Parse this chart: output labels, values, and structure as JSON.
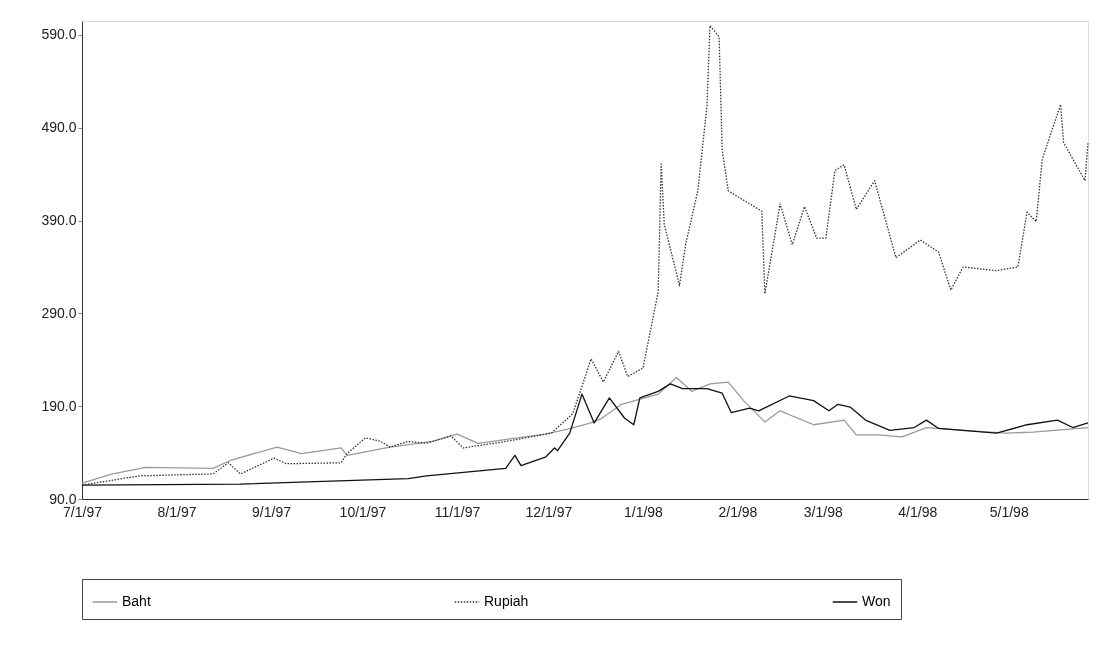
{
  "chart_data": {
    "type": "line",
    "xlim": [
      "1997-07-01",
      "1998-05-27"
    ],
    "ylim": [
      90,
      605
    ],
    "xticks": [
      {
        "value": "1997-07-01",
        "label": "7/1/97"
      },
      {
        "value": "1997-08-01",
        "label": "8/1/97"
      },
      {
        "value": "1997-09-01",
        "label": "9/1/97"
      },
      {
        "value": "1997-10-01",
        "label": "10/1/97"
      },
      {
        "value": "1997-11-01",
        "label": "11/1/97"
      },
      {
        "value": "1997-12-01",
        "label": "12/1/97"
      },
      {
        "value": "1998-01-01",
        "label": "1/1/98"
      },
      {
        "value": "1998-02-01",
        "label": "2/1/98"
      },
      {
        "value": "1998-03-01",
        "label": "3/1/98"
      },
      {
        "value": "1998-04-01",
        "label": "4/1/98"
      },
      {
        "value": "1998-05-01",
        "label": "5/1/98"
      }
    ],
    "yticks": [
      {
        "value": 90,
        "label": "90.0"
      },
      {
        "value": 190,
        "label": "190.0"
      },
      {
        "value": 290,
        "label": "290.0"
      },
      {
        "value": 390,
        "label": "390.0"
      },
      {
        "value": 490,
        "label": "490.0"
      },
      {
        "value": 590,
        "label": "590.0"
      }
    ],
    "grid": false,
    "legend": "bottom",
    "marker": "none",
    "series": [
      {
        "name": "Baht",
        "color": "#9a9a9a",
        "line_style": "solid",
        "x": [
          "1997-07-01",
          "1997-07-11",
          "1997-07-22",
          "1997-08-13",
          "1997-08-19",
          "1997-09-03",
          "1997-09-11",
          "1997-09-24",
          "1997-09-26",
          "1997-10-10",
          "1997-10-24",
          "1997-11-01",
          "1997-11-08",
          "1997-11-30",
          "1997-12-07",
          "1997-12-15",
          "1997-12-18",
          "1997-12-25",
          "1998-01-06",
          "1998-01-12",
          "1998-01-17",
          "1998-01-23",
          "1998-01-29",
          "1998-02-03",
          "1998-02-10",
          "1998-02-15",
          "1998-02-26",
          "1998-03-08",
          "1998-03-12",
          "1998-03-19",
          "1998-03-27",
          "1998-04-04",
          "1998-04-16",
          "1998-04-30",
          "1998-05-09",
          "1998-05-27"
        ],
        "values": [
          107,
          117,
          124,
          123,
          132,
          146,
          139,
          145,
          137,
          146,
          152,
          160,
          150,
          160,
          165,
          172,
          176,
          192,
          203,
          221,
          206,
          214,
          216,
          196,
          173,
          185,
          170,
          175,
          159,
          159,
          157,
          167,
          164,
          161,
          162,
          167
        ]
      },
      {
        "name": "Rupiah",
        "color": "#333333",
        "line_style": "dotted",
        "x": [
          "1997-07-01",
          "1997-07-20",
          "1997-08-13",
          "1997-08-18",
          "1997-08-22",
          "1997-09-02",
          "1997-09-06",
          "1997-09-24",
          "1997-09-26",
          "1997-10-02",
          "1997-10-07",
          "1997-10-10",
          "1997-10-16",
          "1997-10-22",
          "1997-10-30",
          "1997-11-03",
          "1997-11-17",
          "1997-12-02",
          "1997-12-09",
          "1997-12-15",
          "1997-12-19",
          "1997-12-24",
          "1997-12-27",
          "1998-01-01",
          "1998-01-06",
          "1998-01-07",
          "1998-01-08",
          "1998-01-13",
          "1998-01-15",
          "1998-01-19",
          "1998-01-22",
          "1998-01-23",
          "1998-01-26",
          "1998-01-27",
          "1998-01-29",
          "1998-02-05",
          "1998-02-09",
          "1998-02-10",
          "1998-02-15",
          "1998-02-19",
          "1998-02-23",
          "1998-02-27",
          "1998-03-02",
          "1998-03-05",
          "1998-03-08",
          "1998-03-12",
          "1998-03-18",
          "1998-03-25",
          "1998-04-02",
          "1998-04-08",
          "1998-04-12",
          "1998-04-16",
          "1998-04-27",
          "1998-05-04",
          "1998-05-07",
          "1998-05-10",
          "1998-05-12",
          "1998-05-18",
          "1998-05-19",
          "1998-05-26",
          "1998-05-27"
        ],
        "values": [
          105,
          115,
          117,
          129,
          117,
          134,
          128,
          129,
          139,
          156,
          152,
          146,
          152,
          150,
          158,
          145,
          152,
          161,
          182,
          241,
          216,
          249,
          222,
          231,
          313,
          451,
          386,
          320,
          364,
          422,
          513,
          600,
          588,
          466,
          422,
          408,
          400,
          311,
          408,
          364,
          405,
          371,
          371,
          444,
          450,
          402,
          433,
          350,
          369,
          356,
          315,
          340,
          336,
          340,
          399,
          389,
          456,
          515,
          474,
          433,
          474
        ]
      },
      {
        "name": "Won",
        "color": "#111111",
        "line_style": "solid",
        "x": [
          "1997-07-01",
          "1997-08-22",
          "1997-10-16",
          "1997-10-22",
          "1997-11-17",
          "1997-11-20",
          "1997-11-22",
          "1997-11-30",
          "1997-12-03",
          "1997-12-04",
          "1997-12-08",
          "1997-12-12",
          "1997-12-16",
          "1997-12-21",
          "1997-12-26",
          "1997-12-29",
          "1997-12-31",
          "1998-01-06",
          "1998-01-10",
          "1998-01-14",
          "1998-01-18",
          "1998-01-22",
          "1998-01-27",
          "1998-01-30",
          "1998-02-05",
          "1998-02-08",
          "1998-02-18",
          "1998-02-26",
          "1998-03-03",
          "1998-03-06",
          "1998-03-10",
          "1998-03-15",
          "1998-03-23",
          "1998-03-31",
          "1998-04-04",
          "1998-04-08",
          "1998-04-27",
          "1998-05-07",
          "1998-05-17",
          "1998-05-22",
          "1998-05-27"
        ],
        "values": [
          105,
          106,
          112,
          115,
          123,
          137,
          126,
          135,
          145,
          142,
          161,
          203,
          172,
          199,
          177,
          170,
          199,
          206,
          214,
          209,
          209,
          209,
          204,
          183,
          188,
          185,
          201,
          196,
          185,
          192,
          189,
          175,
          164,
          167,
          175,
          166,
          161,
          170,
          175,
          167,
          172
        ]
      }
    ]
  }
}
